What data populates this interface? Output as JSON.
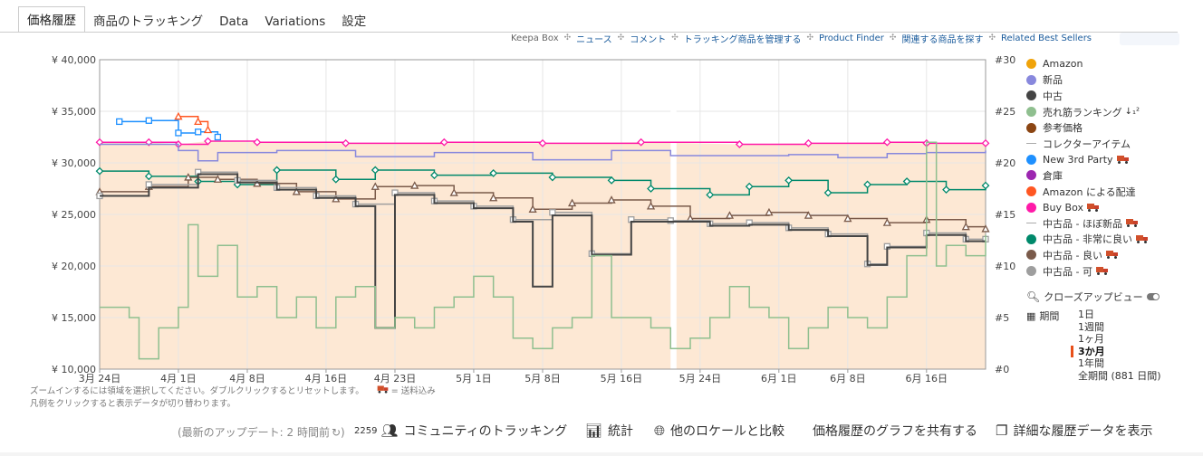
{
  "tabs": [
    "価格履歴",
    "商品のトラッキング",
    "Data",
    "Variations",
    "設定"
  ],
  "links": [
    "Keepa Box",
    "ニュース",
    "コメント",
    "トラッキング商品を管理する",
    "Product Finder",
    "関連する商品を探す",
    "Related Best Sellers"
  ],
  "legend": [
    {
      "label": "Amazon",
      "color": "#f0a30a",
      "kind": "dot"
    },
    {
      "label": "新品",
      "color": "#8888dd",
      "kind": "dot"
    },
    {
      "label": "中古",
      "color": "#444444",
      "kind": "dot"
    },
    {
      "label": "売れ筋ランキング",
      "color": "#8fbf8f",
      "kind": "dot",
      "sort": "↓₁²"
    },
    {
      "label": "参考価格",
      "color": "#8b4513",
      "kind": "dot"
    },
    {
      "label": "コレクターアイテム",
      "color": "#aaaaaa",
      "kind": "dash"
    },
    {
      "label": "New 3rd Party",
      "color": "#1e90ff",
      "kind": "dot",
      "truck": true
    },
    {
      "label": "倉庫",
      "color": "#9c27b0",
      "kind": "dot"
    },
    {
      "label": "Amazon による配達",
      "color": "#ff5722",
      "kind": "dot"
    },
    {
      "label": "Buy Box",
      "color": "#ff1aa8",
      "kind": "dot",
      "truck": true
    },
    {
      "label": "中古品 - ほぼ新品",
      "color": "#aaaaaa",
      "kind": "dash",
      "truck": true
    },
    {
      "label": "中古品 - 非常に良い",
      "color": "#00896b",
      "kind": "dot",
      "truck": true
    },
    {
      "label": "中古品 - 良い",
      "color": "#7a5a4a",
      "kind": "dot",
      "truck": true
    },
    {
      "label": "中古品 - 可",
      "color": "#9e9e9e",
      "kind": "dot",
      "truck": true
    }
  ],
  "closeup": "クローズアップビュー",
  "range_label": "期間",
  "ranges": [
    "1日",
    "1週間",
    "1ヶ月",
    "3か月",
    "1年間",
    "全期間 (881 日間)"
  ],
  "selected_range": "3か月",
  "hint1": "ズームインするには領域を選択してください。ダブルクリックするとリセットします。",
  "hint_truck": "= 送料込み",
  "hint2": "凡例をクリックすると表示データが切り替わります。",
  "bottom": {
    "update": "(最新のアップデート: 2 時間前",
    "count": "2259",
    "community": "コミュニティのトラッキング",
    "stats": "統計",
    "compare": "他のロケールと比較",
    "share": "価格履歴のグラフを共有する",
    "detail": "詳細な履歴データを表示"
  },
  "chart_data": {
    "type": "line",
    "x_ticks": [
      "3月 24日",
      "4月 1日",
      "4月 8日",
      "4月 16日",
      "4月 23日",
      "5月 1日",
      "5月 8日",
      "5月 16日",
      "5月 24日",
      "6月 1日",
      "6月 8日",
      "6月 16日"
    ],
    "y_ticks_left": [
      "¥ 40,000",
      "¥ 35,000",
      "¥ 30,000",
      "¥ 25,000",
      "¥ 20,000",
      "¥ 15,000",
      "¥ 10,000"
    ],
    "y_ticks_right": [
      "#30",
      "#25",
      "#20",
      "#15",
      "#10",
      "#5",
      "#0"
    ],
    "ylim": [
      10000,
      40000
    ],
    "ylim_right": [
      0,
      30
    ],
    "x_days": [
      0,
      8,
      15,
      23,
      30,
      38,
      45,
      53,
      61,
      69,
      76,
      84
    ],
    "x_range_days": [
      0,
      90
    ],
    "gap_days": [
      58,
      58.6
    ],
    "series": [
      {
        "name": "Buy Box",
        "color": "#ff1aa8",
        "marker": "diamond",
        "points": [
          [
            0,
            32000
          ],
          [
            5,
            32000
          ],
          [
            8,
            31800
          ],
          [
            11,
            32100
          ],
          [
            16,
            32000
          ],
          [
            25,
            31900
          ],
          [
            35,
            32000
          ],
          [
            45,
            31900
          ],
          [
            55,
            32000
          ],
          [
            65,
            31800
          ],
          [
            72,
            31900
          ],
          [
            80,
            32000
          ],
          [
            84,
            31900
          ],
          [
            90,
            31900
          ]
        ]
      },
      {
        "name": "新品",
        "color": "#8888dd",
        "marker": "none",
        "points": [
          [
            0,
            31800
          ],
          [
            8,
            31200
          ],
          [
            10,
            30200
          ],
          [
            12,
            31000
          ],
          [
            18,
            31200
          ],
          [
            26,
            30600
          ],
          [
            34,
            31000
          ],
          [
            44,
            30300
          ],
          [
            52,
            31200
          ],
          [
            58,
            30700
          ],
          [
            64,
            30700
          ],
          [
            70,
            30800
          ],
          [
            75,
            30500
          ],
          [
            80,
            30900
          ],
          [
            84,
            31000
          ],
          [
            90,
            31200
          ]
        ]
      },
      {
        "name": "中古品 - 非常に良い",
        "color": "#00896b",
        "marker": "diamond",
        "points": [
          [
            0,
            29200
          ],
          [
            5,
            28700
          ],
          [
            10,
            28200
          ],
          [
            14,
            27900
          ],
          [
            18,
            29300
          ],
          [
            24,
            28400
          ],
          [
            28,
            29300
          ],
          [
            34,
            28800
          ],
          [
            40,
            29000
          ],
          [
            46,
            28600
          ],
          [
            52,
            28300
          ],
          [
            56,
            27500
          ],
          [
            62,
            26900
          ],
          [
            66,
            27700
          ],
          [
            70,
            28300
          ],
          [
            74,
            27100
          ],
          [
            78,
            27900
          ],
          [
            82,
            28200
          ],
          [
            86,
            27400
          ],
          [
            90,
            27800
          ]
        ]
      },
      {
        "name": "中古品 - 良い",
        "color": "#7a5a4a",
        "marker": "triangle",
        "points": [
          [
            0,
            27200
          ],
          [
            5,
            27700
          ],
          [
            9,
            28600
          ],
          [
            12,
            28400
          ],
          [
            16,
            28000
          ],
          [
            20,
            27200
          ],
          [
            24,
            26500
          ],
          [
            28,
            27700
          ],
          [
            32,
            27800
          ],
          [
            36,
            27100
          ],
          [
            40,
            26600
          ],
          [
            44,
            25500
          ],
          [
            48,
            26100
          ],
          [
            52,
            26400
          ],
          [
            56,
            25800
          ],
          [
            60,
            24600
          ],
          [
            64,
            24900
          ],
          [
            68,
            25200
          ],
          [
            72,
            24900
          ],
          [
            76,
            24600
          ],
          [
            80,
            24200
          ],
          [
            84,
            24500
          ],
          [
            88,
            23800
          ],
          [
            90,
            23600
          ]
        ]
      },
      {
        "name": "中古品 - 可",
        "color": "#9e9e9e",
        "marker": "square",
        "points": [
          [
            0,
            26800
          ],
          [
            5,
            27900
          ],
          [
            10,
            29100
          ],
          [
            14,
            28300
          ],
          [
            18,
            27600
          ],
          [
            22,
            26800
          ],
          [
            26,
            26000
          ],
          [
            30,
            27100
          ],
          [
            34,
            26300
          ],
          [
            38,
            25800
          ],
          [
            42,
            24500
          ],
          [
            46,
            25200
          ],
          [
            50,
            21200
          ],
          [
            54,
            24500
          ],
          [
            58,
            24400
          ],
          [
            62,
            24100
          ],
          [
            66,
            24200
          ],
          [
            70,
            23700
          ],
          [
            74,
            23100
          ],
          [
            78,
            20200
          ],
          [
            80,
            21900
          ],
          [
            84,
            23200
          ],
          [
            88,
            22600
          ],
          [
            90,
            22600
          ]
        ]
      },
      {
        "name": "中古",
        "color": "#444444",
        "marker": "none",
        "points": [
          [
            0,
            26800
          ],
          [
            5,
            27600
          ],
          [
            10,
            28900
          ],
          [
            14,
            28100
          ],
          [
            18,
            27400
          ],
          [
            22,
            26600
          ],
          [
            26,
            25800
          ],
          [
            28,
            14000
          ],
          [
            30,
            26900
          ],
          [
            34,
            26100
          ],
          [
            38,
            25600
          ],
          [
            42,
            24300
          ],
          [
            44,
            18000
          ],
          [
            46,
            24900
          ],
          [
            50,
            21100
          ],
          [
            54,
            24300
          ],
          [
            58,
            24300
          ],
          [
            62,
            23900
          ],
          [
            66,
            24000
          ],
          [
            70,
            23500
          ],
          [
            74,
            22900
          ],
          [
            78,
            20100
          ],
          [
            80,
            21800
          ],
          [
            84,
            23000
          ],
          [
            88,
            22400
          ],
          [
            90,
            22400
          ]
        ]
      },
      {
        "name": "売れ筋ランキング",
        "color": "#8fbf8f",
        "axis": "right",
        "marker": "none",
        "points": [
          [
            0,
            6
          ],
          [
            3,
            5
          ],
          [
            4,
            1
          ],
          [
            6,
            4
          ],
          [
            8,
            6
          ],
          [
            9,
            14
          ],
          [
            10,
            9
          ],
          [
            12,
            12
          ],
          [
            14,
            7
          ],
          [
            16,
            8
          ],
          [
            18,
            5
          ],
          [
            20,
            7
          ],
          [
            22,
            4
          ],
          [
            24,
            7
          ],
          [
            26,
            8
          ],
          [
            28,
            4
          ],
          [
            30,
            5
          ],
          [
            32,
            4
          ],
          [
            34,
            6
          ],
          [
            36,
            7
          ],
          [
            38,
            9
          ],
          [
            40,
            7
          ],
          [
            42,
            3
          ],
          [
            44,
            2
          ],
          [
            46,
            4
          ],
          [
            48,
            5
          ],
          [
            50,
            11
          ],
          [
            52,
            5
          ],
          [
            54,
            5
          ],
          [
            56,
            4
          ],
          [
            58,
            2
          ],
          [
            60,
            3
          ],
          [
            62,
            5
          ],
          [
            64,
            8
          ],
          [
            66,
            6
          ],
          [
            68,
            5
          ],
          [
            70,
            2
          ],
          [
            72,
            4
          ],
          [
            74,
            6
          ],
          [
            76,
            5
          ],
          [
            78,
            4
          ],
          [
            80,
            7
          ],
          [
            82,
            11
          ],
          [
            84,
            22
          ],
          [
            85,
            10
          ],
          [
            86,
            12
          ],
          [
            88,
            11
          ],
          [
            90,
            13
          ]
        ]
      },
      {
        "name": "New 3rd Party",
        "color": "#1e90ff",
        "marker": "square",
        "points": [
          [
            2,
            34000
          ],
          [
            5,
            34100
          ],
          [
            8,
            32900
          ],
          [
            10,
            33000
          ],
          [
            12,
            32500
          ]
        ]
      },
      {
        "name": "Amazon による配達",
        "color": "#ff5722",
        "marker": "triangle",
        "points": [
          [
            8,
            34500
          ],
          [
            10,
            34000
          ],
          [
            11,
            33200
          ]
        ]
      }
    ]
  }
}
